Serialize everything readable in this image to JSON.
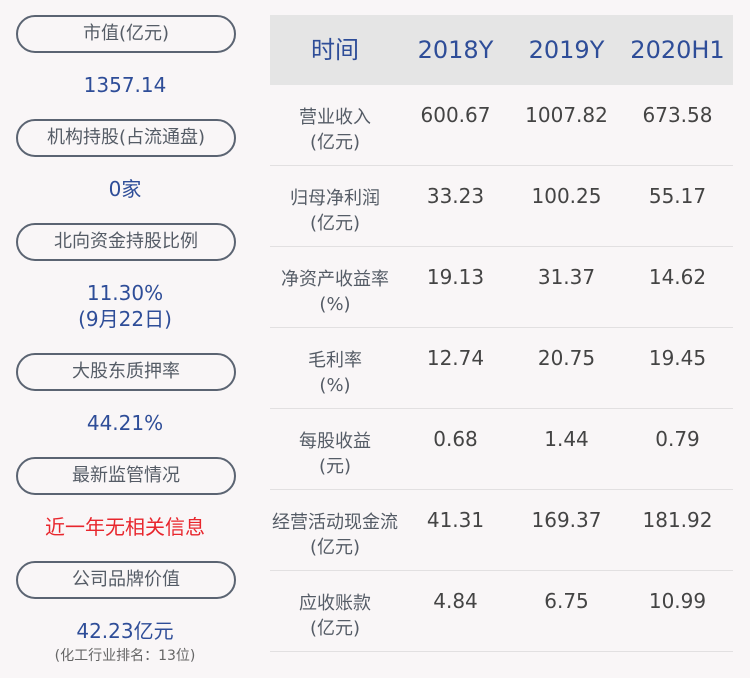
{
  "left": [
    {
      "label": "市值(亿元)",
      "value": "1357.14"
    },
    {
      "label": "机构持股(占流通盘)",
      "value": "0家"
    },
    {
      "label": "北向资金持股比例",
      "value": "11.30%",
      "value2": "(9月22日)"
    },
    {
      "label": "大股东质押率",
      "value": "44.21%"
    },
    {
      "label": "最新监管情况",
      "value": "近一年无相关信息"
    },
    {
      "label": "公司品牌价值",
      "value": "42.23亿元",
      "note": "(化工行业排名：13位)"
    }
  ],
  "table": {
    "headers": [
      "时间",
      "2018Y",
      "2019Y",
      "2020H1"
    ],
    "rows": [
      {
        "name": "营业收入",
        "unit": "(亿元)",
        "values": [
          "600.67",
          "1007.82",
          "673.58"
        ]
      },
      {
        "name": "归母净利润",
        "unit": "(亿元)",
        "values": [
          "33.23",
          "100.25",
          "55.17"
        ]
      },
      {
        "name": "净资产收益率",
        "unit": "(%)",
        "values": [
          "19.13",
          "31.37",
          "14.62"
        ]
      },
      {
        "name": "毛利率",
        "unit": "(%)",
        "values": [
          "12.74",
          "20.75",
          "19.45"
        ]
      },
      {
        "name": "每股收益",
        "unit": "(元)",
        "values": [
          "0.68",
          "1.44",
          "0.79"
        ]
      },
      {
        "name": "经营活动现金流",
        "unit": "(亿元)",
        "values": [
          "41.31",
          "169.37",
          "181.92"
        ]
      },
      {
        "name": "应收账款",
        "unit": "(亿元)",
        "values": [
          "4.84",
          "6.75",
          "10.99"
        ]
      }
    ]
  },
  "colors": {
    "accent": "#2e4d98",
    "alert": "#e8262d",
    "header_bg": "#e5e5e5",
    "page_bg": "#f9f6f7"
  }
}
